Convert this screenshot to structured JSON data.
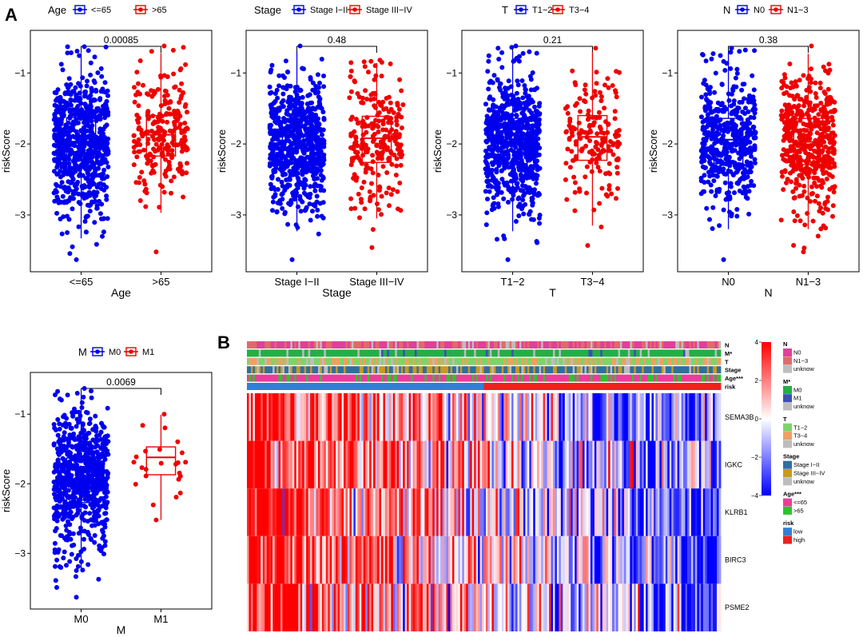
{
  "panel_labels": {
    "a": "A",
    "b": "B"
  },
  "colors": {
    "blue": "#0000ee",
    "red": "#ee0000",
    "grid": "#000000"
  },
  "chart_data": [
    {
      "type": "scatter",
      "subtype": "boxplot-with-jitter",
      "legend_title": "Age",
      "xlabel": "Age",
      "ylabel": "riskScore",
      "categories": [
        "<=65",
        ">65"
      ],
      "ylim": [
        -3.8,
        -0.4
      ],
      "yticks": [
        -3,
        -2,
        -1
      ],
      "ytick_labels": [
        "−3",
        "−2",
        "−1"
      ],
      "pvalue": "0.00085",
      "series": [
        {
          "name": "<=65",
          "n": 700,
          "median": -1.98,
          "q1": -2.32,
          "q3": -1.63,
          "whisker_low": -3.33,
          "whisker_high": -0.72,
          "min": -3.63,
          "max": -0.63
        },
        {
          "name": ">65",
          "n": 240,
          "median": -1.87,
          "q1": -2.17,
          "q3": -1.6,
          "whisker_low": -2.97,
          "whisker_high": -0.72,
          "min": -3.52,
          "max": -0.62
        }
      ]
    },
    {
      "type": "scatter",
      "subtype": "boxplot-with-jitter",
      "legend_title": "Stage",
      "xlabel": "Stage",
      "ylabel": "riskScore",
      "categories": [
        "Stage I−II",
        "Stage III−IV"
      ],
      "ylim": [
        -3.8,
        -0.4
      ],
      "yticks": [
        -3,
        -2,
        -1
      ],
      "ytick_labels": [
        "−3",
        "−2",
        "−1"
      ],
      "pvalue": "0.48",
      "series": [
        {
          "name": "Stage I−II",
          "n": 700,
          "median": -1.97,
          "q1": -2.28,
          "q3": -1.64,
          "whisker_low": -3.23,
          "whisker_high": -0.7,
          "min": -3.63,
          "max": -0.62
        },
        {
          "name": "Stage III−IV",
          "n": 240,
          "median": -1.92,
          "q1": -2.26,
          "q3": -1.61,
          "whisker_low": -3.05,
          "whisker_high": -0.86,
          "min": -3.46,
          "max": -0.82
        }
      ]
    },
    {
      "type": "scatter",
      "subtype": "boxplot-with-jitter",
      "legend_title": "T",
      "xlabel": "T",
      "ylabel": "riskScore",
      "categories": [
        "T1−2",
        "T3−4"
      ],
      "ylim": [
        -3.8,
        -0.4
      ],
      "yticks": [
        -3,
        -2,
        -1
      ],
      "ytick_labels": [
        "−3",
        "−2",
        "−1"
      ],
      "pvalue": "0.21",
      "series": [
        {
          "name": "T1−2",
          "n": 750,
          "median": -1.97,
          "q1": -2.28,
          "q3": -1.64,
          "whisker_low": -3.23,
          "whisker_high": -0.7,
          "min": -3.63,
          "max": -0.62
        },
        {
          "name": "T3−4",
          "n": 170,
          "median": -1.9,
          "q1": -2.23,
          "q3": -1.6,
          "whisker_low": -3.15,
          "whisker_high": -0.7,
          "min": -3.43,
          "max": -0.65
        }
      ]
    },
    {
      "type": "scatter",
      "subtype": "boxplot-with-jitter",
      "legend_title": "N",
      "xlabel": "N",
      "ylabel": "riskScore",
      "categories": [
        "N0",
        "N1−3"
      ],
      "ylim": [
        -3.8,
        -0.4
      ],
      "yticks": [
        -3,
        -2,
        -1
      ],
      "ytick_labels": [
        "−3",
        "−2",
        "−1"
      ],
      "pvalue": "0.38",
      "series": [
        {
          "name": "N0",
          "n": 480,
          "median": -1.94,
          "q1": -2.27,
          "q3": -1.64,
          "whisker_low": -3.2,
          "whisker_high": -0.7,
          "min": -3.63,
          "max": -0.65
        },
        {
          "name": "N1−3",
          "n": 480,
          "median": -1.97,
          "q1": -2.29,
          "q3": -1.64,
          "whisker_low": -3.2,
          "whisker_high": -0.73,
          "min": -3.52,
          "max": -0.62
        }
      ]
    },
    {
      "type": "scatter",
      "subtype": "boxplot-with-jitter",
      "legend_title": "M",
      "xlabel": "M",
      "ylabel": "riskScore",
      "categories": [
        "M0",
        "M1"
      ],
      "ylim": [
        -3.8,
        -0.4
      ],
      "yticks": [
        -3,
        -2,
        -1
      ],
      "ytick_labels": [
        "−3",
        "−2",
        "−1"
      ],
      "pvalue": "0.0069",
      "series": [
        {
          "name": "M0",
          "n": 750,
          "median": -1.93,
          "q1": -2.27,
          "q3": -1.63,
          "whisker_low": -3.23,
          "whisker_high": -0.7,
          "min": -3.63,
          "max": -0.63
        },
        {
          "name": "M1",
          "n": 22,
          "median": -1.62,
          "q1": -1.87,
          "q3": -1.47,
          "whisker_low": -2.52,
          "whisker_high": -1.01,
          "min": -2.52,
          "max": -1.0
        }
      ]
    },
    {
      "type": "heatmap",
      "rows": [
        "SEMA3B",
        "IGKC",
        "KLRB1",
        "BIRC3",
        "PSME2"
      ],
      "annotation_rows": [
        "N",
        "M*",
        "T",
        "Stage",
        "Age***",
        "risk"
      ],
      "n_samples": 940,
      "low_risk_fraction": 0.5,
      "scale": {
        "min": -4,
        "max": 4,
        "ticks": [
          4,
          2,
          0,
          -2,
          -4
        ],
        "tick_labels": [
          "4",
          "2",
          "0",
          "−2",
          "−4"
        ],
        "colors": [
          "#0000ff",
          "#ffffff",
          "#ff0000"
        ]
      },
      "legends": [
        {
          "title": "N",
          "items": [
            {
              "label": "N0",
              "color": "#e0409a"
            },
            {
              "label": "N1−3",
              "color": "#e06a6a"
            },
            {
              "label": "unknow",
              "color": "#bdbdbd"
            }
          ]
        },
        {
          "title": "M*",
          "items": [
            {
              "label": "M0",
              "color": "#22b040"
            },
            {
              "label": "M1",
              "color": "#3a4fb8"
            },
            {
              "label": "unknow",
              "color": "#bdbdbd"
            }
          ]
        },
        {
          "title": "T",
          "items": [
            {
              "label": "T1−2",
              "color": "#7ed36a"
            },
            {
              "label": "T3−4",
              "color": "#f0a060"
            },
            {
              "label": "unknow",
              "color": "#bdbdbd"
            }
          ]
        },
        {
          "title": "Stage",
          "items": [
            {
              "label": "Stage I−II",
              "color": "#2f6f9f"
            },
            {
              "label": "Stage III−IV",
              "color": "#c89a1e"
            },
            {
              "label": "unknow",
              "color": "#bdbdbd"
            }
          ]
        },
        {
          "title": "Age***",
          "items": [
            {
              "label": "<=65",
              "color": "#ea3d9a"
            },
            {
              "label": ">65",
              "color": "#2ec32e"
            }
          ]
        },
        {
          "title": "risk",
          "items": [
            {
              "label": "low",
              "color": "#2f7fd9"
            },
            {
              "label": "high",
              "color": "#ee2020"
            }
          ]
        }
      ]
    }
  ]
}
